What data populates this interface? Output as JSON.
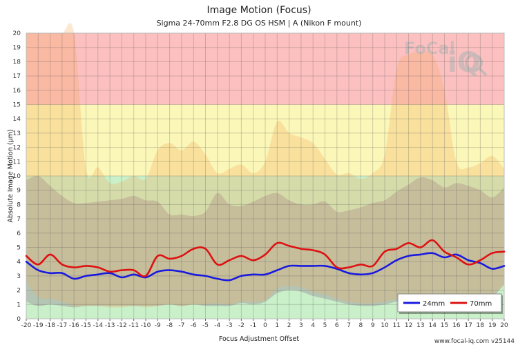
{
  "chart_data": {
    "type": "line",
    "title": "Image Motion (Focus)",
    "subtitle": "Sigma 24-70mm F2.8 DG OS HSM | A (Nikon F mount)",
    "xlabel": "Focus Adjustment Offset",
    "ylabel": "Absolute Image Motion (µm)",
    "xlim": [
      -20,
      20
    ],
    "ylim": [
      0,
      20
    ],
    "x_ticks": [
      -20,
      -19,
      -18,
      -17,
      -16,
      -15,
      -14,
      -13,
      -12,
      -11,
      -10,
      -9,
      -8,
      -7,
      -6,
      -5,
      -4,
      -3,
      -2,
      -1,
      0,
      1,
      2,
      3,
      4,
      5,
      6,
      7,
      8,
      9,
      10,
      11,
      12,
      13,
      14,
      15,
      16,
      17,
      18,
      19,
      20
    ],
    "y_ticks": [
      0,
      1,
      2,
      3,
      4,
      5,
      6,
      7,
      8,
      9,
      10,
      11,
      12,
      13,
      14,
      15,
      16,
      17,
      18,
      19,
      20
    ],
    "grid": true,
    "legend_position": "bottom-right",
    "zones": [
      {
        "from": 0,
        "to": 10,
        "color": "#c9f0c9"
      },
      {
        "from": 10,
        "to": 15,
        "color": "#fbf7b8"
      },
      {
        "from": 15,
        "to": 20,
        "color": "#fdc0c0"
      }
    ],
    "series": [
      {
        "name": "24mm",
        "color": "#1a1adf",
        "x": [
          -20,
          -19,
          -18,
          -17,
          -16,
          -15,
          -14,
          -13,
          -12,
          -11,
          -10,
          -9,
          -8,
          -7,
          -6,
          -5,
          -4,
          -3,
          -2,
          -1,
          0,
          1,
          2,
          3,
          4,
          5,
          6,
          7,
          8,
          9,
          10,
          11,
          12,
          13,
          14,
          15,
          16,
          17,
          18,
          19,
          20
        ],
        "values": [
          4.0,
          3.4,
          3.2,
          3.2,
          2.8,
          3.0,
          3.1,
          3.2,
          2.9,
          3.1,
          2.9,
          3.3,
          3.4,
          3.3,
          3.1,
          3.0,
          2.8,
          2.7,
          3.0,
          3.1,
          3.1,
          3.4,
          3.7,
          3.7,
          3.7,
          3.7,
          3.5,
          3.2,
          3.1,
          3.2,
          3.6,
          4.1,
          4.4,
          4.5,
          4.6,
          4.3,
          4.5,
          4.1,
          3.9,
          3.5,
          3.7
        ]
      },
      {
        "name": "70mm",
        "color": "#dd1111",
        "x": [
          -20,
          -19,
          -18,
          -17,
          -16,
          -15,
          -14,
          -13,
          -12,
          -11,
          -10,
          -9,
          -8,
          -7,
          -6,
          -5,
          -4,
          -3,
          -2,
          -1,
          0,
          1,
          2,
          3,
          4,
          5,
          6,
          7,
          8,
          9,
          10,
          11,
          12,
          13,
          14,
          15,
          16,
          17,
          18,
          19,
          20
        ],
        "values": [
          4.4,
          3.8,
          4.5,
          3.8,
          3.6,
          3.7,
          3.6,
          3.3,
          3.4,
          3.4,
          3.0,
          4.4,
          4.2,
          4.4,
          4.9,
          4.9,
          3.8,
          4.1,
          4.4,
          4.1,
          4.5,
          5.3,
          5.1,
          4.9,
          4.8,
          4.5,
          3.6,
          3.6,
          3.8,
          3.7,
          4.7,
          4.9,
          5.3,
          5.0,
          5.5,
          4.7,
          4.3,
          3.8,
          4.1,
          4.6,
          4.7
        ]
      }
    ],
    "bands": [
      {
        "name": "24mm range",
        "fill": "#a3a3a3",
        "opacity": 0.55,
        "x": [
          -20,
          -19,
          -18,
          -17,
          -16,
          -15,
          -14,
          -13,
          -12,
          -11,
          -10,
          -9,
          -8,
          -7,
          -6,
          -5,
          -4,
          -3,
          -2,
          -1,
          0,
          1,
          2,
          3,
          4,
          5,
          6,
          7,
          8,
          9,
          10,
          11,
          12,
          13,
          14,
          15,
          16,
          17,
          18,
          19,
          20
        ],
        "upper": [
          9.7,
          10.0,
          9.3,
          8.6,
          8.1,
          8.1,
          8.2,
          8.3,
          8.4,
          8.6,
          8.3,
          8.2,
          7.3,
          7.3,
          7.2,
          7.5,
          8.8,
          8.0,
          7.9,
          8.2,
          8.6,
          8.8,
          8.3,
          8.0,
          8.0,
          8.2,
          7.5,
          7.6,
          7.8,
          8.1,
          8.3,
          8.9,
          9.4,
          9.9,
          9.7,
          9.2,
          9.5,
          9.3,
          9.0,
          8.5,
          9.2
        ],
        "lower": [
          1.2,
          0.9,
          1.0,
          0.9,
          0.8,
          0.9,
          0.9,
          0.9,
          0.9,
          0.9,
          0.9,
          0.9,
          1.0,
          0.9,
          1.0,
          0.9,
          0.9,
          0.9,
          1.1,
          1.0,
          1.2,
          1.8,
          2.0,
          1.9,
          1.6,
          1.4,
          1.2,
          1.0,
          0.9,
          0.9,
          1.0,
          1.2,
          1.3,
          1.2,
          1.2,
          1.2,
          1.2,
          1.2,
          1.2,
          1.5,
          2.4
        ]
      },
      {
        "name": "70mm range",
        "fill": "#f3a95a",
        "opacity": 0.28,
        "x": [
          -20,
          -19,
          -18,
          -17,
          -16,
          -15,
          -14,
          -13,
          -12,
          -11,
          -10,
          -9,
          -8,
          -7,
          -6,
          -5,
          -4,
          -3,
          -2,
          -1,
          0,
          1,
          2,
          3,
          4,
          5,
          6,
          7,
          8,
          9,
          10,
          11,
          12,
          13,
          14,
          15,
          16,
          17,
          18,
          19,
          20
        ],
        "upper": [
          20,
          20,
          20,
          20,
          20,
          10.5,
          10.6,
          9.5,
          9.6,
          10.0,
          9.8,
          11.8,
          12.3,
          11.8,
          12.4,
          11.5,
          10.2,
          10.5,
          10.8,
          10.2,
          11.0,
          13.8,
          13.0,
          12.7,
          12.3,
          11.2,
          10.1,
          10.2,
          9.8,
          10.2,
          11.5,
          17.5,
          18.5,
          18.7,
          18.5,
          16.0,
          11.0,
          10.6,
          10.9,
          11.4,
          10.5
        ],
        "lower": [
          2.6,
          1.5,
          1.4,
          1.2,
          0.9,
          0.9,
          0.9,
          0.8,
          0.8,
          0.9,
          0.8,
          0.9,
          1.0,
          0.9,
          1.0,
          1.0,
          1.1,
          1.0,
          1.2,
          1.2,
          1.3,
          2.1,
          2.3,
          2.2,
          1.9,
          1.7,
          1.4,
          1.2,
          1.1,
          1.1,
          1.2,
          1.4,
          1.5,
          1.4,
          1.4,
          1.4,
          1.4,
          1.4,
          1.4,
          1.7,
          2.4
        ]
      }
    ]
  },
  "footer": "www.focal-iq.com  v25144",
  "logo": {
    "text": "FoCal iQ",
    "icon": "magnifier-icon"
  }
}
